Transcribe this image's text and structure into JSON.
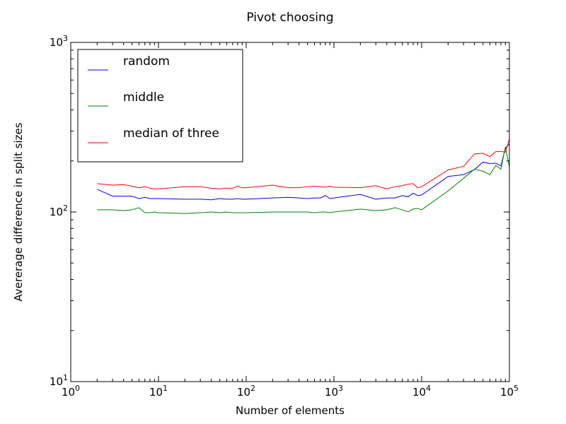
{
  "chart_data": {
    "type": "line",
    "title": "Pivot choosing",
    "xlabel": "Number of elements",
    "ylabel": "Avererage difference in split sizes",
    "xscale": "log",
    "yscale": "log",
    "xlim": [
      1,
      100000
    ],
    "ylim": [
      10,
      1000
    ],
    "grid": false,
    "legend_position": "top-left",
    "x_ticks": [
      {
        "base": "10",
        "exp": "0",
        "value": 1
      },
      {
        "base": "10",
        "exp": "1",
        "value": 10
      },
      {
        "base": "10",
        "exp": "2",
        "value": 100
      },
      {
        "base": "10",
        "exp": "3",
        "value": 1000
      },
      {
        "base": "10",
        "exp": "4",
        "value": 10000
      },
      {
        "base": "10",
        "exp": "5",
        "value": 100000
      }
    ],
    "y_ticks": [
      {
        "base": "10",
        "exp": "1",
        "value": 10
      },
      {
        "base": "10",
        "exp": "2",
        "value": 100
      },
      {
        "base": "10",
        "exp": "3",
        "value": 1000
      }
    ],
    "x": [
      2,
      3,
      4,
      5,
      6,
      7,
      8,
      9,
      10,
      20,
      30,
      40,
      50,
      60,
      70,
      80,
      90,
      100,
      200,
      300,
      400,
      500,
      600,
      700,
      800,
      900,
      1000,
      2000,
      3000,
      4000,
      5000,
      6000,
      7000,
      8000,
      9000,
      10000,
      20000,
      30000,
      40000,
      50000,
      60000,
      70000,
      80000,
      90000,
      100000
    ],
    "series": [
      {
        "name": "random",
        "color": "#0000ff",
        "values": [
          136,
          124,
          124,
          124,
          120,
          122,
          120,
          120,
          120,
          119,
          119,
          118,
          120,
          119,
          119,
          120,
          119,
          119,
          121,
          122,
          121,
          120,
          121,
          121,
          125,
          120,
          121,
          127,
          119,
          121,
          121,
          125,
          123,
          129,
          125,
          126,
          162,
          166,
          178,
          197,
          193,
          194,
          187,
          238,
          252
        ]
      },
      {
        "name": "middle",
        "color": "#008000",
        "values": [
          103,
          103,
          102,
          103,
          106,
          99,
          99,
          100,
          99,
          98,
          99,
          100,
          99,
          100,
          99,
          99,
          99,
          99,
          100,
          100,
          100,
          100,
          99,
          100,
          100,
          99,
          100,
          104,
          102,
          103,
          106,
          103,
          100,
          104,
          105,
          103,
          133,
          158,
          179,
          174,
          166,
          188,
          179,
          242,
          184
        ]
      },
      {
        "name": "median of three",
        "color": "#ff0000",
        "values": [
          147,
          144,
          145,
          142,
          139,
          141,
          138,
          137,
          137,
          141,
          141,
          138,
          137,
          138,
          138,
          142,
          139,
          139,
          144,
          139,
          139,
          141,
          142,
          141,
          140,
          142,
          140,
          139,
          143,
          137,
          141,
          143,
          146,
          147,
          139,
          141,
          177,
          186,
          220,
          222,
          212,
          227,
          228,
          225,
          270
        ]
      }
    ]
  }
}
